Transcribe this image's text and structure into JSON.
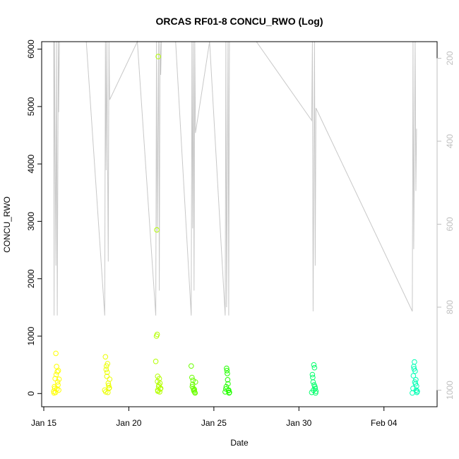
{
  "chart_data": {
    "type": "scatter",
    "title": "ORCAS RF01-8 CONCU_RWO (Log)",
    "xlabel": "Date",
    "ylabel": "CONCU_RWO",
    "x_ticks": [
      "Jan 15",
      "Jan 20",
      "Jan 25",
      "Jan 30",
      "Feb 04"
    ],
    "x_tick_dates": [
      "2016-01-15",
      "2016-01-20",
      "2016-01-25",
      "2016-01-30",
      "2016-02-04"
    ],
    "xlim": [
      "2016-01-14T21:00",
      "2016-02-07T03:00"
    ],
    "y_ticks": [
      0,
      1000,
      2000,
      3000,
      4000,
      5000,
      6000
    ],
    "ylim": [
      -230,
      6130
    ],
    "y2_label": "",
    "y2_ticks": [
      200,
      400,
      600,
      800,
      1000
    ],
    "y2_lim": [
      1040,
      160
    ],
    "y2_reversed": true,
    "y2_color": "#bfbfbf",
    "grid": false,
    "marker": "open-circle",
    "series": [
      {
        "color": "#ffff00",
        "x": [
          "2016-01-15T14:00",
          "2016-01-15T15:00",
          "2016-01-15T16:00",
          "2016-01-15T17:00",
          "2016-01-15T18:00",
          "2016-01-15T19:00",
          "2016-01-15T20:00",
          "2016-01-15T21:00",
          "2016-01-15T15:30",
          "2016-01-15T17:30",
          "2016-01-15T19:30",
          "2016-01-15T16:30",
          "2016-01-15T18:30",
          "2016-01-15T20:30",
          "2016-01-15T14:30",
          "2016-01-15T21:30"
        ],
        "y": [
          40,
          120,
          260,
          700,
          470,
          380,
          150,
          60,
          90,
          330,
          200,
          20,
          80,
          400,
          10,
          250
        ]
      },
      {
        "color": "#ecff00",
        "x": [
          "2016-01-18T14:00",
          "2016-01-18T15:00",
          "2016-01-18T16:00",
          "2016-01-18T17:00",
          "2016-01-18T18:00",
          "2016-01-18T19:00",
          "2016-01-18T20:00",
          "2016-01-18T21:00",
          "2016-01-18T15:30",
          "2016-01-18T17:30",
          "2016-01-18T19:30",
          "2016-01-18T16:30",
          "2016-01-18T18:30",
          "2016-01-18T20:30"
        ],
        "y": [
          60,
          640,
          420,
          300,
          520,
          180,
          90,
          250,
          30,
          370,
          140,
          480,
          20,
          100
        ]
      },
      {
        "color": "#b4ff00",
        "x": [
          "2016-01-21T14:00",
          "2016-01-21T15:00",
          "2016-01-21T16:00",
          "2016-01-21T17:00",
          "2016-01-21T18:00",
          "2016-01-21T19:00",
          "2016-01-21T20:00",
          "2016-01-21T21:00",
          "2016-01-21T15:30",
          "2016-01-21T17:30",
          "2016-01-21T19:30",
          "2016-01-21T16:30",
          "2016-01-21T18:30",
          "2016-01-21T20:30",
          "2016-01-21T16:45",
          "2016-01-21T16:50"
        ],
        "y": [
          560,
          1000,
          1030,
          40,
          120,
          260,
          180,
          90,
          2850,
          5870,
          30,
          210,
          150,
          80,
          300,
          60
        ]
      },
      {
        "color": "#6aff00",
        "x": [
          "2016-01-23T16:00",
          "2016-01-23T17:00",
          "2016-01-23T18:00",
          "2016-01-23T19:00",
          "2016-01-23T20:00",
          "2016-01-23T21:00",
          "2016-01-23T22:00",
          "2016-01-23T17:30",
          "2016-01-23T19:30",
          "2016-01-23T21:30",
          "2016-01-23T18:30",
          "2016-01-23T20:30"
        ],
        "y": [
          480,
          280,
          160,
          90,
          40,
          20,
          200,
          120,
          60,
          10,
          230,
          70
        ]
      },
      {
        "color": "#23ff00",
        "x": [
          "2016-01-25T16:00",
          "2016-01-25T17:00",
          "2016-01-25T18:00",
          "2016-01-25T19:00",
          "2016-01-25T20:00",
          "2016-01-25T21:00",
          "2016-01-25T22:00",
          "2016-01-25T17:30",
          "2016-01-25T19:30",
          "2016-01-25T21:30",
          "2016-01-25T18:30",
          "2016-01-25T20:30"
        ],
        "y": [
          30,
          80,
          440,
          350,
          170,
          60,
          20,
          120,
          240,
          10,
          400,
          50
        ]
      },
      {
        "color": "#00ff6a",
        "x": [
          "2016-01-30T18:00",
          "2016-01-30T19:00",
          "2016-01-30T20:00",
          "2016-01-30T21:00",
          "2016-01-30T22:00",
          "2016-01-30T23:00",
          "2016-01-31T00:00",
          "2016-01-30T19:30",
          "2016-01-30T21:30",
          "2016-01-30T23:30",
          "2016-01-30T20:30",
          "2016-01-30T22:30"
        ],
        "y": [
          20,
          330,
          200,
          500,
          450,
          90,
          40,
          280,
          150,
          10,
          60,
          120
        ]
      },
      {
        "color": "#00ffb4",
        "x": [
          "2016-02-05T16:00",
          "2016-02-05T17:00",
          "2016-02-05T18:00",
          "2016-02-05T19:00",
          "2016-02-05T20:00",
          "2016-02-05T21:00",
          "2016-02-05T22:00",
          "2016-02-05T23:00",
          "2016-02-05T17:30",
          "2016-02-05T19:30",
          "2016-02-05T21:30",
          "2016-02-05T18:30",
          "2016-02-05T20:30",
          "2016-02-05T22:30"
        ],
        "y": [
          10,
          90,
          470,
          550,
          390,
          240,
          130,
          40,
          310,
          200,
          60,
          430,
          170,
          20
        ]
      }
    ],
    "pressure_trace": {
      "color": "#c8c8c8",
      "x": [
        "2016-01-15T14:00",
        "2016-01-15T14:30",
        "2016-01-15T15:00",
        "2016-01-15T17:00",
        "2016-01-15T18:00",
        "2016-01-15T19:00",
        "2016-01-15T20:30",
        "2016-01-15T21:00",
        "2016-01-15T22:00",
        "2016-01-17T12:00",
        "2016-01-18T14:00",
        "2016-01-18T15:00",
        "2016-01-18T16:00",
        "2016-01-18T17:00",
        "2016-01-18T19:00",
        "2016-01-18T20:00",
        "2016-01-18T21:00",
        "2016-01-20T12:00",
        "2016-01-21T14:00",
        "2016-01-21T15:00",
        "2016-01-21T16:00",
        "2016-01-21T18:00",
        "2016-01-21T19:00",
        "2016-01-21T20:00",
        "2016-01-21T21:00",
        "2016-01-21T22:00",
        "2016-01-22T18:00",
        "2016-01-23T16:00",
        "2016-01-23T17:00",
        "2016-01-23T18:00",
        "2016-01-23T19:00",
        "2016-01-23T20:00",
        "2016-01-23T21:00",
        "2016-01-23T22:00",
        "2016-01-24T18:00",
        "2016-01-25T16:00",
        "2016-01-25T17:00",
        "2016-01-25T18:00",
        "2016-01-25T20:00",
        "2016-01-25T21:00",
        "2016-01-25T22:00",
        "2016-01-27T12:00",
        "2016-01-30T18:00",
        "2016-01-30T19:00",
        "2016-01-30T20:00",
        "2016-01-30T22:00",
        "2016-01-30T23:00",
        "2016-01-31T00:00",
        "2016-02-05T16:00",
        "2016-02-05T17:00",
        "2016-02-05T18:00",
        "2016-02-05T20:00",
        "2016-02-05T21:00",
        "2016-02-05T22:00"
      ],
      "y": [
        160,
        820,
        160,
        700,
        160,
        820,
        160,
        330,
        160,
        160,
        820,
        160,
        470,
        160,
        690,
        160,
        300,
        160,
        820,
        160,
        620,
        160,
        760,
        160,
        240,
        160,
        160,
        820,
        160,
        610,
        160,
        760,
        160,
        380,
        160,
        820,
        160,
        800,
        160,
        820,
        160,
        160,
        350,
        160,
        810,
        160,
        700,
        320,
        810,
        160,
        660,
        160,
        520,
        370
      ]
    }
  }
}
